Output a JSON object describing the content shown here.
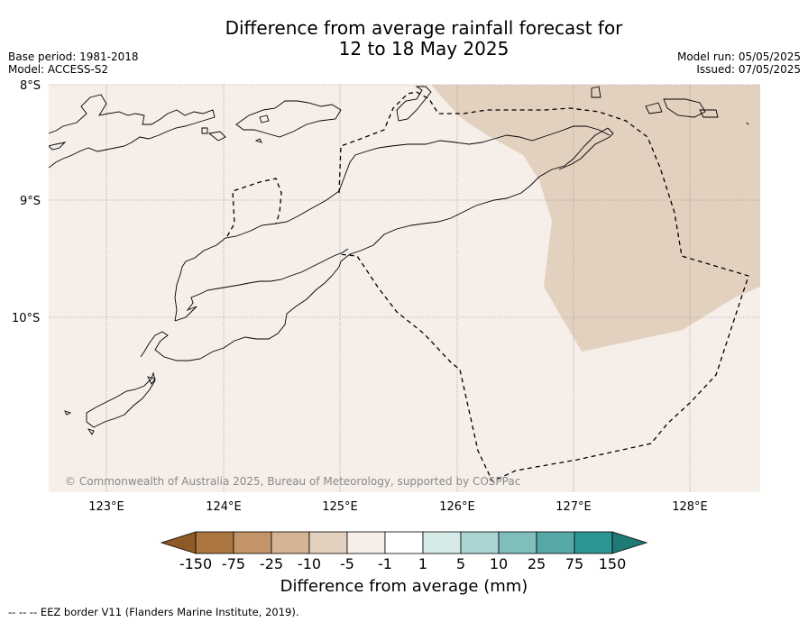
{
  "title": {
    "line1": "Difference from average rainfall forecast for",
    "line2": "12 to 18 May 2025"
  },
  "meta_left": {
    "line1": "Base period: 1981-2018",
    "line2": "Model: ACCESS-S2"
  },
  "meta_right": {
    "line1": "Model run: 05/05/2025",
    "line2": "Issued: 07/05/2025"
  },
  "map": {
    "lat_labels": [
      "8°S",
      "9°S",
      "10°S"
    ],
    "lon_labels": [
      "123°E",
      "124°E",
      "125°E",
      "126°E",
      "127°E",
      "128°E"
    ],
    "extent": {
      "lon": [
        122.5,
        128.6
      ],
      "lat": [
        -11.5,
        -8.0
      ]
    },
    "credit": "© Commonwealth of Australia 2025, Bureau of Meteorology, supported by COSPPac",
    "colors": {
      "background_anomaly": "#f5eee9",
      "dry_anomaly": "#e3d1c0"
    }
  },
  "colorbar": {
    "labels": [
      "-150",
      "-75",
      "-25",
      "-10",
      "-5",
      "-1",
      "1",
      "5",
      "10",
      "25",
      "75",
      "150"
    ],
    "colors": [
      "#8e5a27",
      "#ac7640",
      "#c29468",
      "#d5b493",
      "#e3d1c0",
      "#f5eee9",
      "#ffffff",
      "#d6ebe8",
      "#a9d6d3",
      "#7fbebb",
      "#56a8a6",
      "#2c9792",
      "#1f7a76"
    ],
    "title": "Difference from average (mm)"
  },
  "footer": "--  --  -- EEZ border V11 (Flanders Marine Institute, 2019)."
}
